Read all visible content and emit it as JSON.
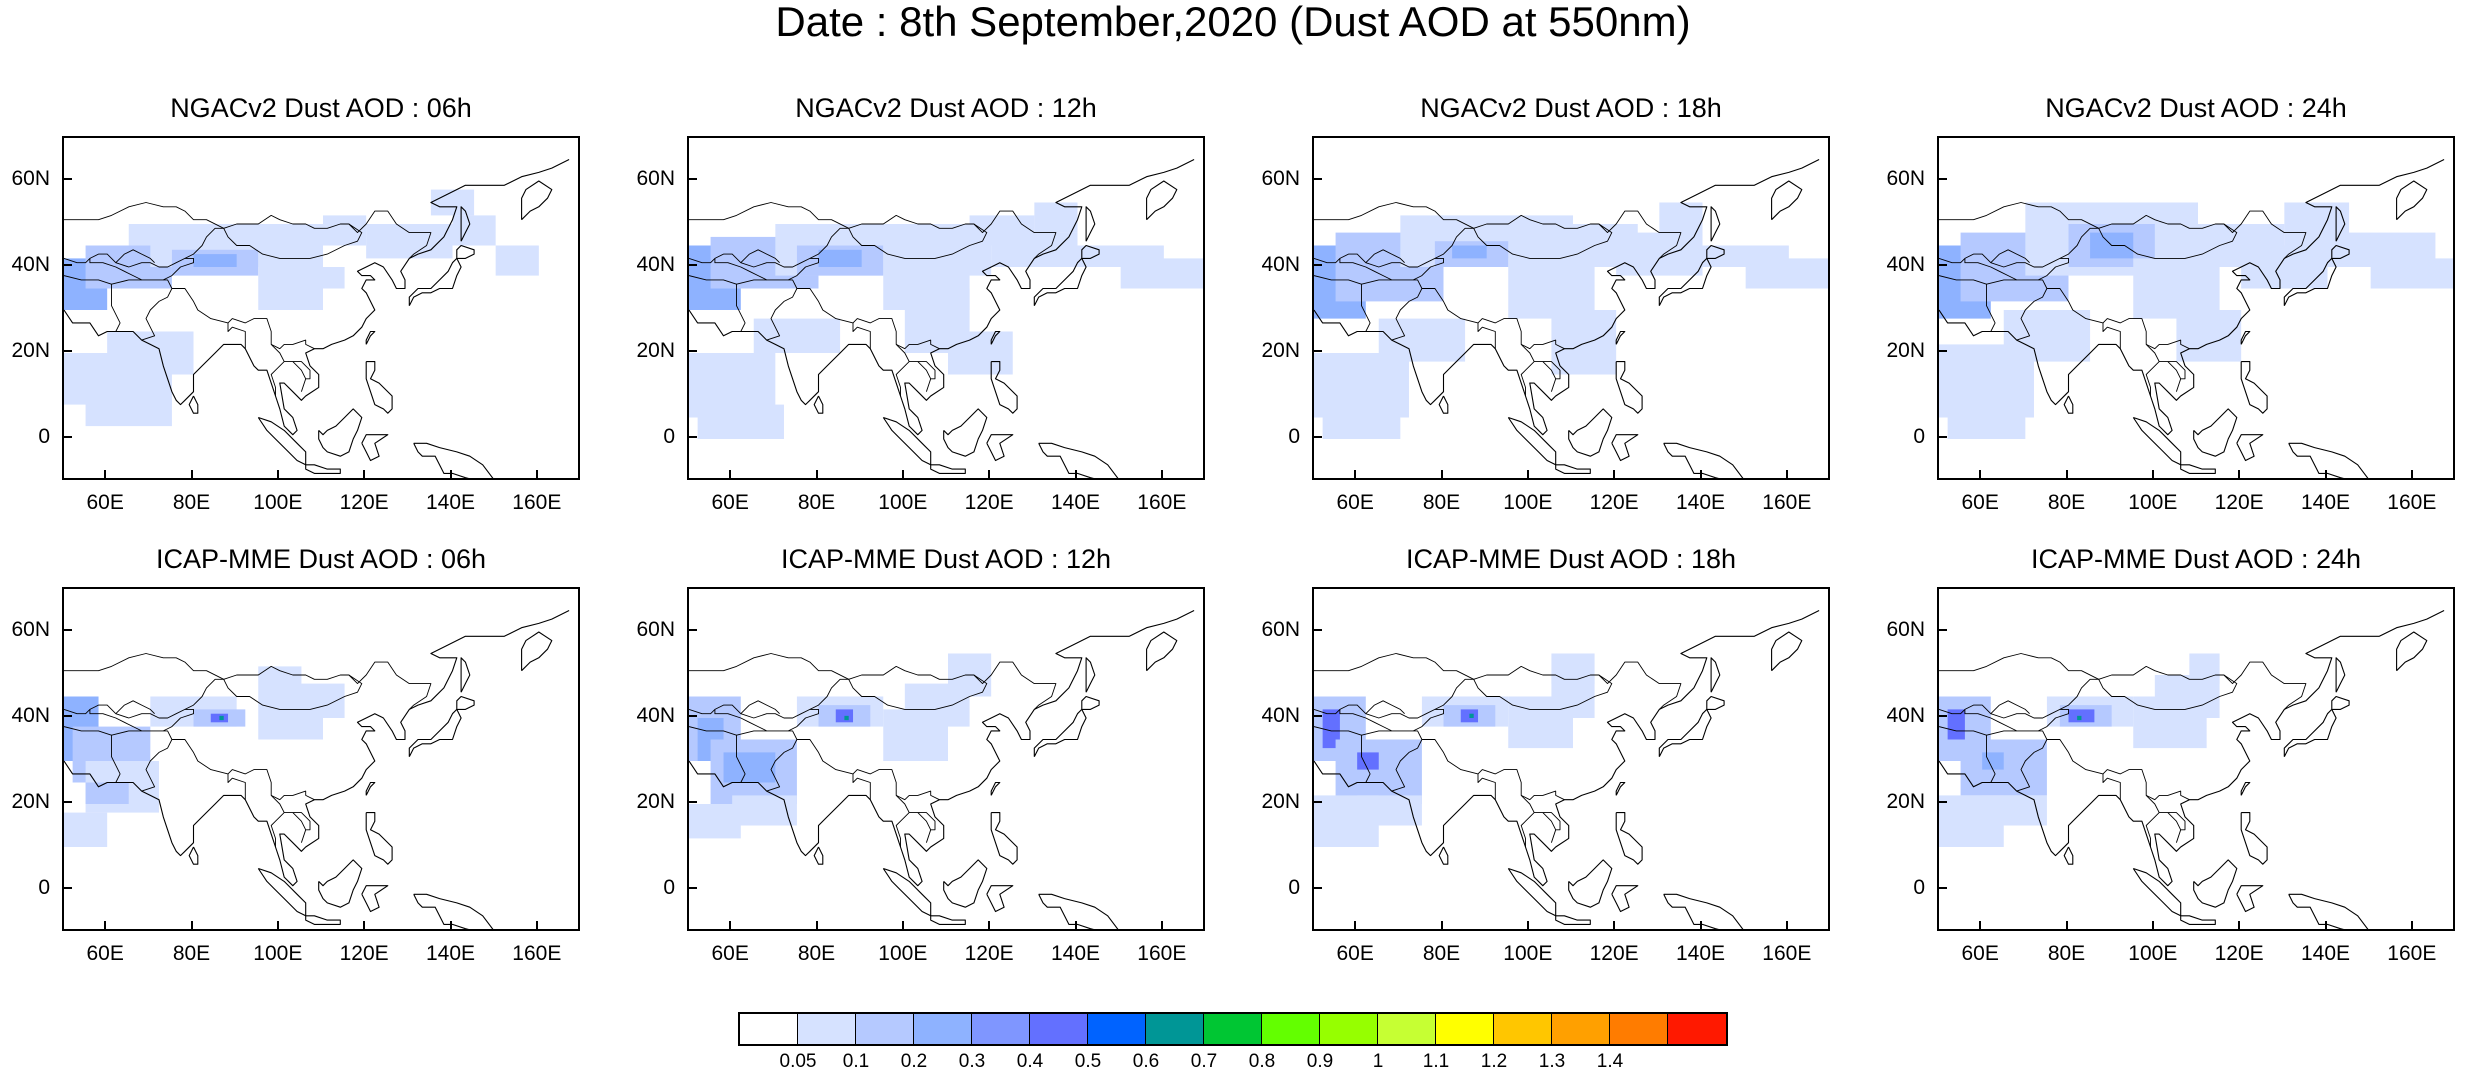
{
  "title": "Date : 8th September,2020 (Dust AOD at 550nm)",
  "panels": [
    {
      "title": "NGACv2 Dust AOD : 06h",
      "model": "NGACv2",
      "hour": "06h"
    },
    {
      "title": "NGACv2 Dust AOD : 12h",
      "model": "NGACv2",
      "hour": "12h"
    },
    {
      "title": "NGACv2 Dust AOD : 18h",
      "model": "NGACv2",
      "hour": "18h"
    },
    {
      "title": "NGACv2 Dust AOD : 24h",
      "model": "NGACv2",
      "hour": "24h"
    },
    {
      "title": "ICAP-MME Dust AOD : 06h",
      "model": "ICAP-MME",
      "hour": "06h"
    },
    {
      "title": "ICAP-MME Dust AOD : 12h",
      "model": "ICAP-MME",
      "hour": "12h"
    },
    {
      "title": "ICAP-MME Dust AOD : 18h",
      "model": "ICAP-MME",
      "hour": "18h"
    },
    {
      "title": "ICAP-MME Dust AOD : 24h",
      "model": "ICAP-MME",
      "hour": "24h"
    }
  ],
  "map_extent": {
    "lon": [
      50,
      170
    ],
    "lat": [
      -10,
      70
    ]
  },
  "lat_ticks": [
    {
      "value": 60,
      "label": "60N"
    },
    {
      "value": 40,
      "label": "40N"
    },
    {
      "value": 20,
      "label": "20N"
    },
    {
      "value": 0,
      "label": "0"
    }
  ],
  "lon_ticks": [
    {
      "value": 60,
      "label": "60E"
    },
    {
      "value": 80,
      "label": "80E"
    },
    {
      "value": 100,
      "label": "100E"
    },
    {
      "value": 120,
      "label": "120E"
    },
    {
      "value": 140,
      "label": "140E"
    },
    {
      "value": 160,
      "label": "160E"
    }
  ],
  "colorbar": {
    "colors": [
      "#ffffff",
      "#d6e2ff",
      "#b5c9ff",
      "#8eb2ff",
      "#7f96ff",
      "#6370ff",
      "#0063ff",
      "#009696",
      "#00c633",
      "#63ff00",
      "#96ff00",
      "#c6ff33",
      "#ffff00",
      "#ffc600",
      "#ffa000",
      "#ff7c00",
      "#ff1900"
    ],
    "labels": [
      "0.05",
      "0.1",
      "0.2",
      "0.3",
      "0.4",
      "0.5",
      "0.6",
      "0.7",
      "0.8",
      "0.9",
      "1",
      "1.1",
      "1.2",
      "1.3",
      "1.4"
    ]
  },
  "dust_levels": {
    "light": "#d6e2ff",
    "medium": "#b5c9ff",
    "strong": "#8eb2ff",
    "heavy": "#7f96ff",
    "peak": "#6370ff",
    "max": "#009696"
  }
}
